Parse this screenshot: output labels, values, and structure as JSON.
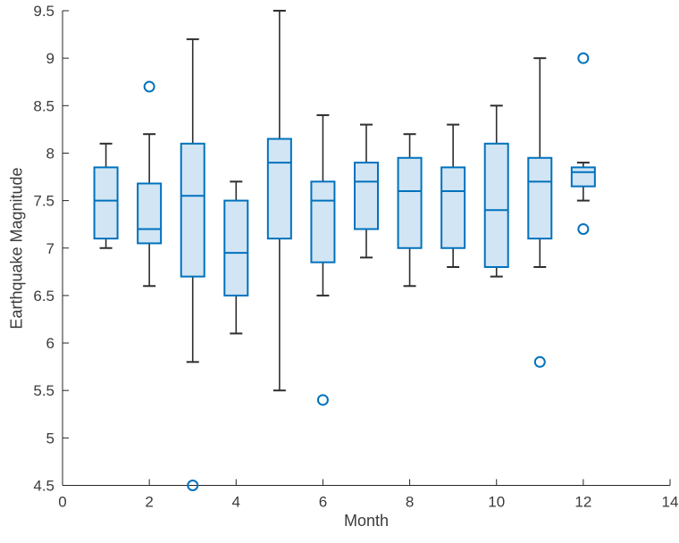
{
  "figure": {
    "background": "#ffffff"
  },
  "chart_data": {
    "type": "boxplot",
    "title": "",
    "xlabel": "Month",
    "ylabel": "Earthquake Magnitude",
    "xlim": [
      0,
      14
    ],
    "ylim": [
      4.5,
      9.5
    ],
    "x_ticks": [
      0,
      2,
      4,
      6,
      8,
      10,
      12,
      14
    ],
    "x_tick_labels": [
      "0",
      "2",
      "4",
      "6",
      "8",
      "10",
      "12",
      "14"
    ],
    "y_ticks": [
      4.5,
      5,
      5.5,
      6,
      6.5,
      7,
      7.5,
      8,
      8.5,
      9,
      9.5
    ],
    "y_tick_labels": [
      "4.5",
      "5",
      "5.5",
      "6",
      "6.5",
      "7",
      "7.5",
      "8",
      "8.5",
      "9",
      "9.5"
    ],
    "grid": false,
    "legend": null,
    "boxes": [
      {
        "x": 1,
        "whisker_low": 7.0,
        "q1": 7.1,
        "median": 7.5,
        "q3": 7.85,
        "whisker_high": 8.1,
        "outliers": []
      },
      {
        "x": 2,
        "whisker_low": 6.6,
        "q1": 7.05,
        "median": 7.2,
        "q3": 7.68,
        "whisker_high": 8.2,
        "outliers": [
          8.7
        ]
      },
      {
        "x": 3,
        "whisker_low": 5.8,
        "q1": 6.7,
        "median": 7.55,
        "q3": 8.1,
        "whisker_high": 9.2,
        "outliers": [
          4.5
        ]
      },
      {
        "x": 4,
        "whisker_low": 6.1,
        "q1": 6.5,
        "median": 6.95,
        "q3": 7.5,
        "whisker_high": 7.7,
        "outliers": []
      },
      {
        "x": 5,
        "whisker_low": 5.5,
        "q1": 7.1,
        "median": 7.9,
        "q3": 8.15,
        "whisker_high": 9.5,
        "outliers": []
      },
      {
        "x": 6,
        "whisker_low": 6.5,
        "q1": 6.85,
        "median": 7.5,
        "q3": 7.7,
        "whisker_high": 8.4,
        "outliers": [
          5.4
        ]
      },
      {
        "x": 7,
        "whisker_low": 6.9,
        "q1": 7.2,
        "median": 7.7,
        "q3": 7.9,
        "whisker_high": 8.3,
        "outliers": []
      },
      {
        "x": 8,
        "whisker_low": 6.6,
        "q1": 7.0,
        "median": 7.6,
        "q3": 7.95,
        "whisker_high": 8.2,
        "outliers": []
      },
      {
        "x": 9,
        "whisker_low": 6.8,
        "q1": 7.0,
        "median": 7.6,
        "q3": 7.85,
        "whisker_high": 8.3,
        "outliers": []
      },
      {
        "x": 10,
        "whisker_low": 6.7,
        "q1": 6.8,
        "median": 7.4,
        "q3": 8.1,
        "whisker_high": 8.5,
        "outliers": []
      },
      {
        "x": 11,
        "whisker_low": 6.8,
        "q1": 7.1,
        "median": 7.7,
        "q3": 7.95,
        "whisker_high": 9.0,
        "outliers": [
          5.8
        ]
      },
      {
        "x": 12,
        "whisker_low": 7.5,
        "q1": 7.65,
        "median": 7.8,
        "q3": 7.85,
        "whisker_high": 7.9,
        "outliers": [
          9.0,
          7.2
        ]
      }
    ],
    "colors": {
      "box_edge": "#0072BD",
      "box_fill": "#D2E5F4",
      "median": "#0072BD",
      "whisker": "#2E2E2E",
      "outlier": "#0072BD",
      "axis": "#262626",
      "text": "#3B3B3B"
    }
  }
}
